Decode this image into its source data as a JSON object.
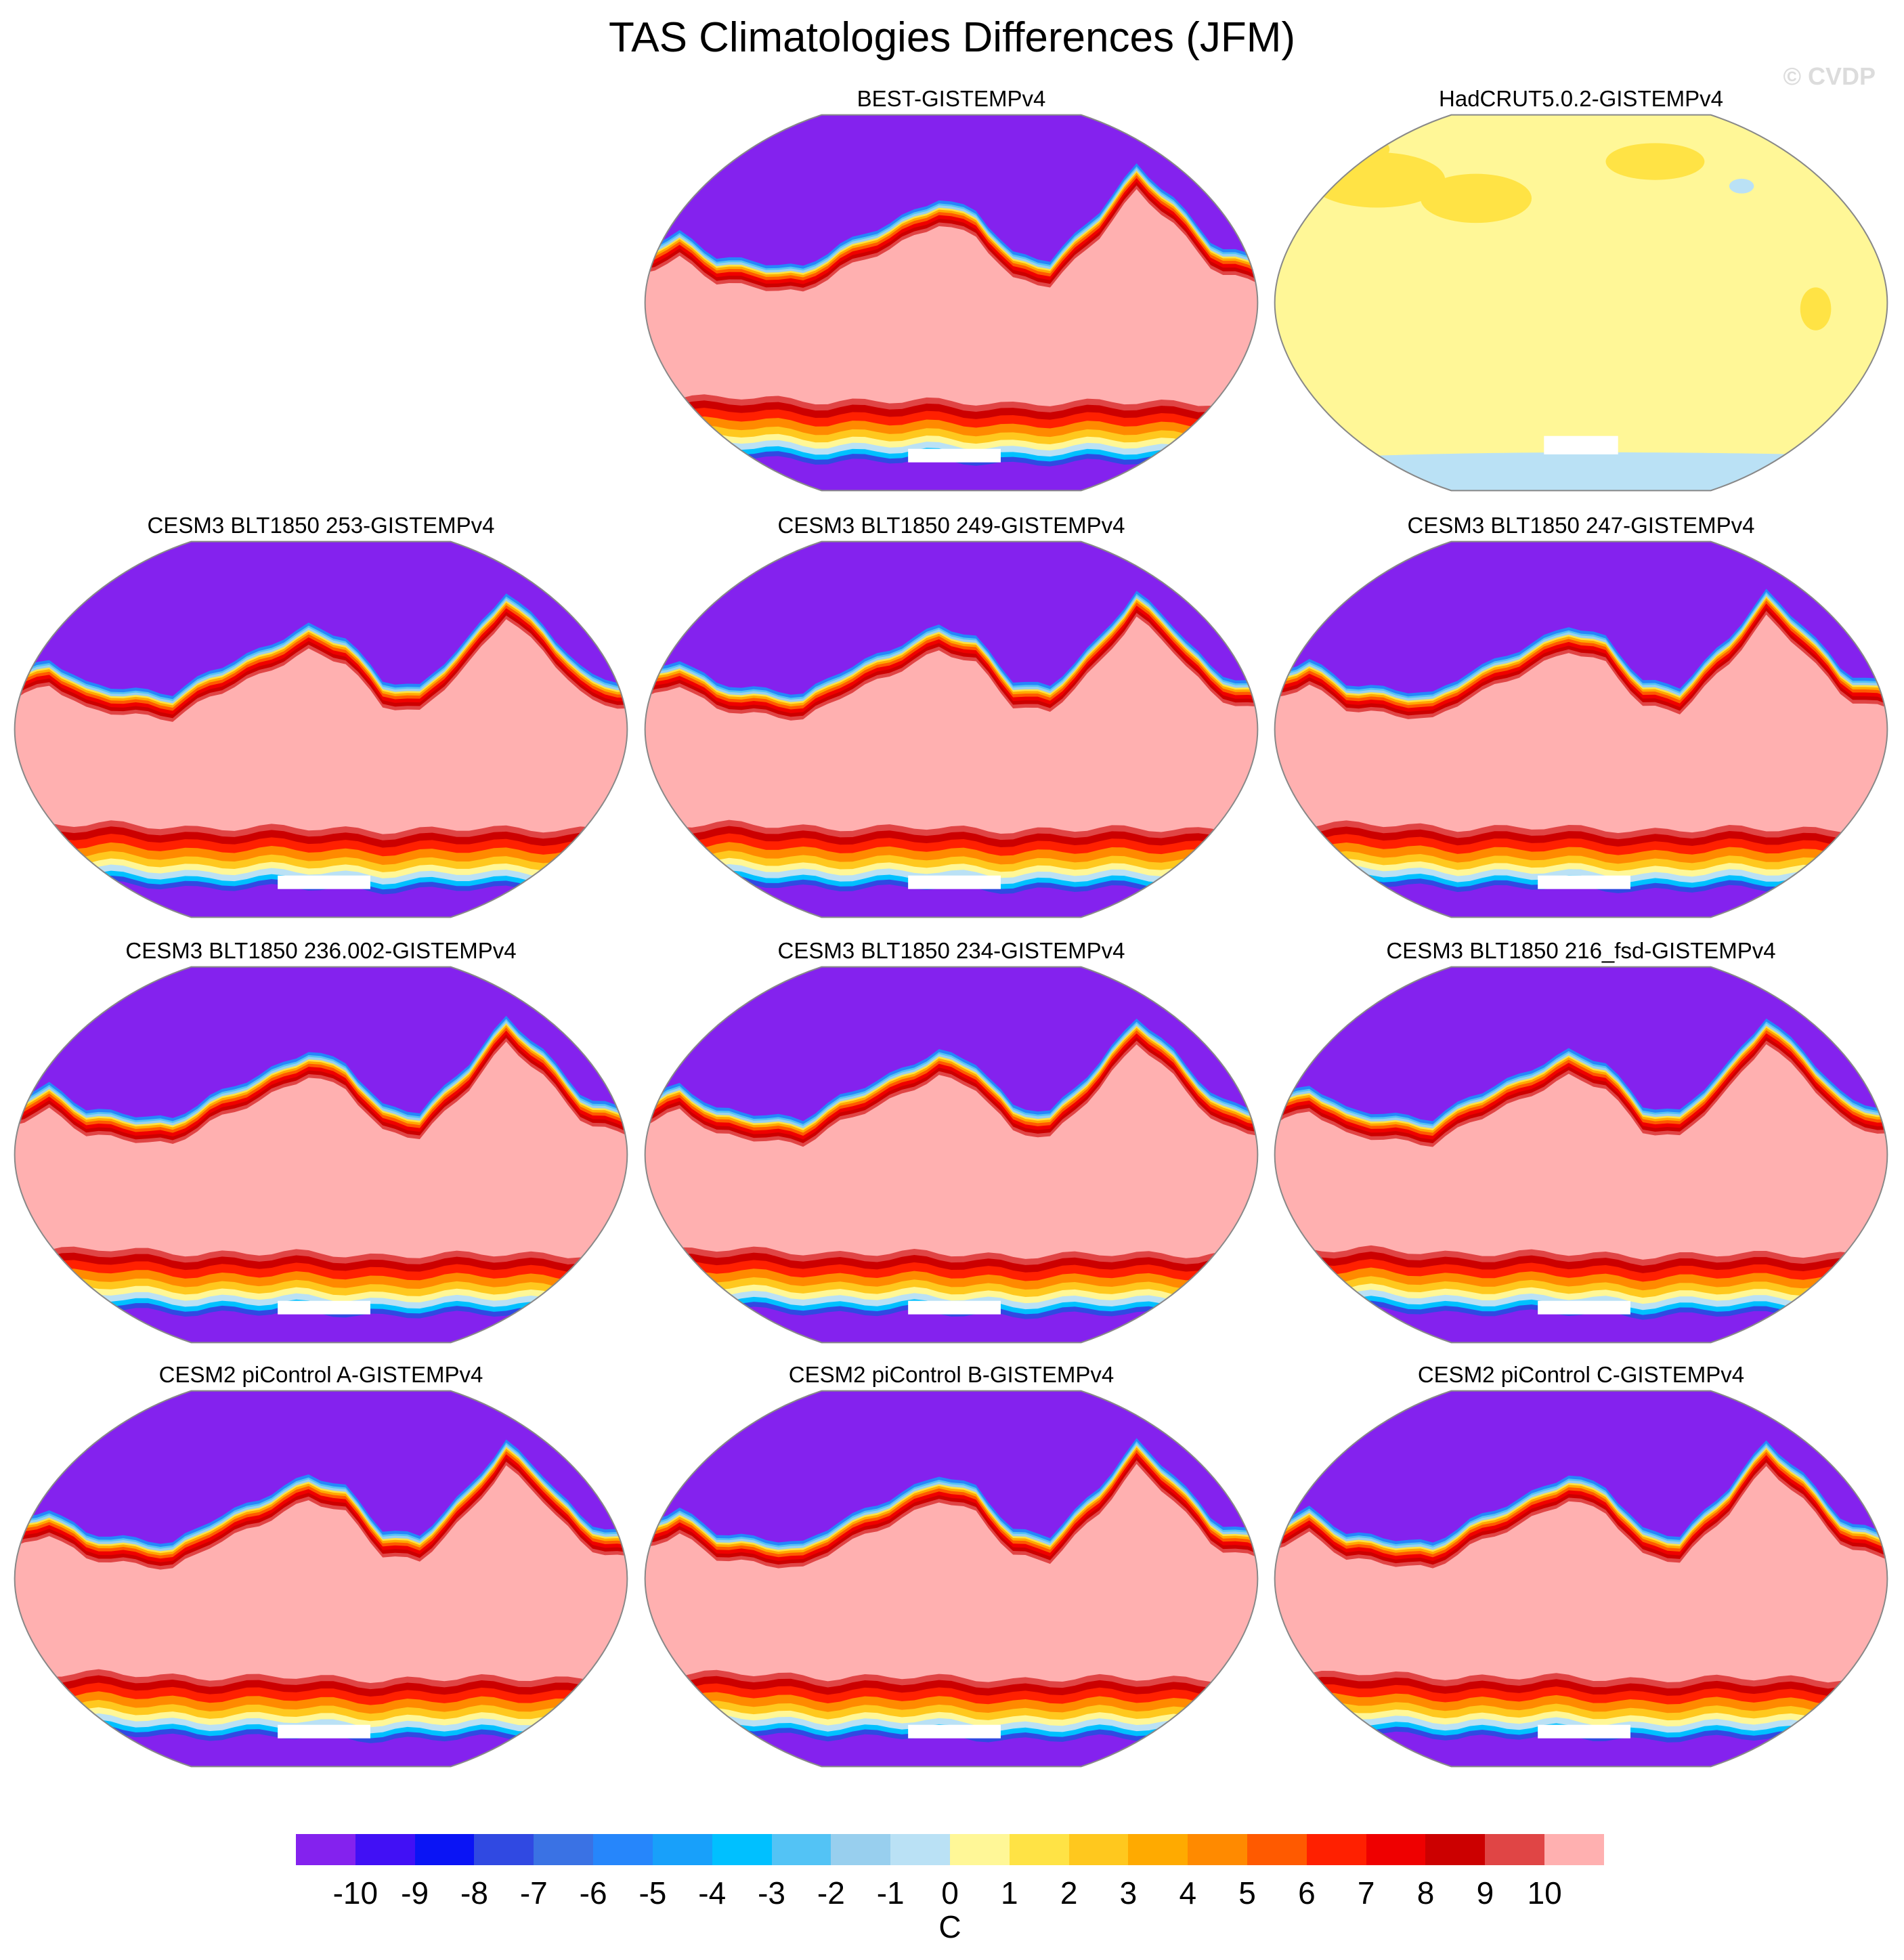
{
  "chart_data": {
    "type": "heatmap",
    "title": "TAS Climatologies Differences (JFM)",
    "watermark": "© CVDP",
    "panels": [
      {
        "title": "BEST-GISTEMPv4"
      },
      {
        "title": "HadCRUT5.0.2-GISTEMPv4"
      },
      {
        "title": "CESM3 BLT1850 253-GISTEMPv4"
      },
      {
        "title": "CESM3 BLT1850 249-GISTEMPv4"
      },
      {
        "title": "CESM3 BLT1850 247-GISTEMPv4"
      },
      {
        "title": "CESM3 BLT1850 236.002-GISTEMPv4"
      },
      {
        "title": "CESM3 BLT1850 234-GISTEMPv4"
      },
      {
        "title": "CESM3 BLT1850 216_fsd-GISTEMPv4"
      },
      {
        "title": "CESM2 piControl A-GISTEMPv4"
      },
      {
        "title": "CESM2 piControl B-GISTEMPv4"
      },
      {
        "title": "CESM2 piControl C-GISTEMPv4"
      }
    ],
    "colorbar": {
      "units": "C",
      "levels": [
        "-10",
        "-9",
        "-8",
        "-7",
        "-6",
        "-5",
        "-4",
        "-3",
        "-2",
        "-1",
        "0",
        "1",
        "2",
        "3",
        "4",
        "5",
        "6",
        "7",
        "8",
        "9",
        "10"
      ],
      "colors": [
        "#8422ee",
        "#4110f5",
        "#0a14f5",
        "#3049e2",
        "#3a72e4",
        "#2686fb",
        "#18a0fa",
        "#00c0ff",
        "#53c3f5",
        "#98cfee",
        "#bae1f5",
        "#fff797",
        "#ffe345",
        "#ffc81e",
        "#ffaa00",
        "#ff8a00",
        "#ff5a00",
        "#ff2000",
        "#ef0000",
        "#cc0000",
        "#e04545",
        "#ffb0b0"
      ]
    }
  }
}
